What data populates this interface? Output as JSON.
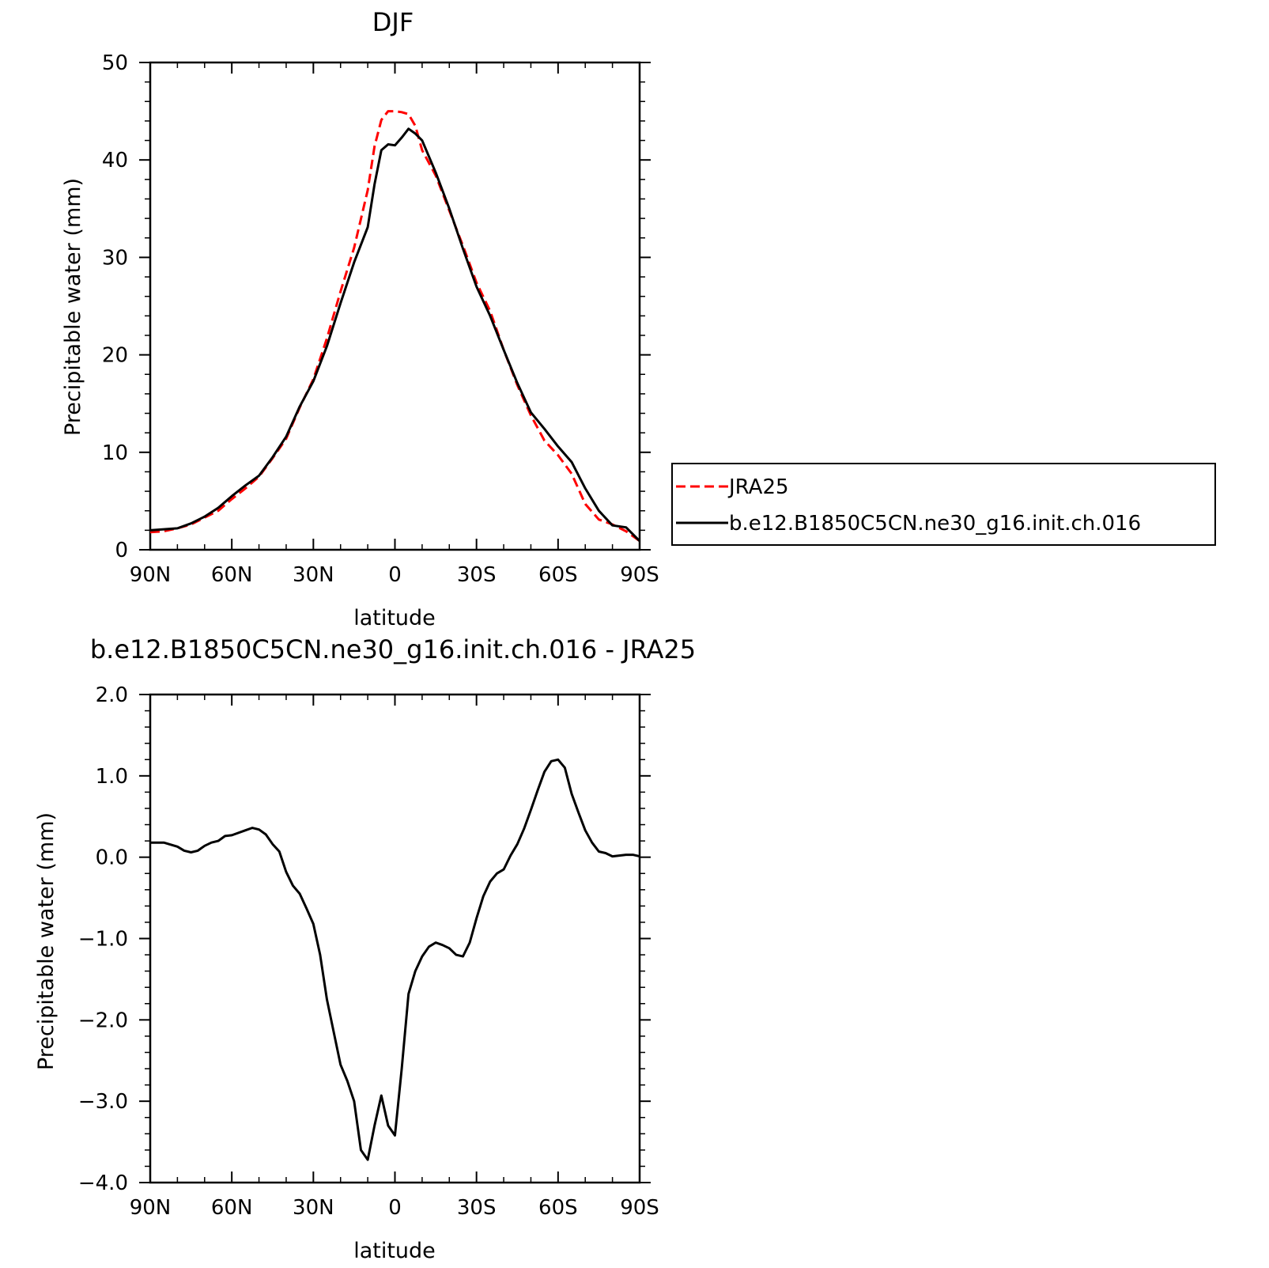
{
  "chart_data": [
    {
      "type": "line",
      "title": "DJF",
      "xlabel": "latitude",
      "ylabel": "Precipitable water (mm)",
      "xlim": [
        90,
        -90
      ],
      "ylim": [
        0,
        50
      ],
      "xticks": [
        90,
        60,
        30,
        0,
        -30,
        -60,
        -90
      ],
      "xtick_labels": [
        "90N",
        "60N",
        "30N",
        "0",
        "30S",
        "60S",
        "90S"
      ],
      "yticks": [
        0,
        10,
        20,
        30,
        40,
        50
      ],
      "ytick_labels": [
        "0",
        "10",
        "20",
        "30",
        "40",
        "50"
      ],
      "legend_position": "right",
      "series": [
        {
          "name": "JRA25",
          "color": "#ff0000",
          "dash": "dashed",
          "x": [
            90,
            85,
            80,
            75,
            70,
            65,
            60,
            55,
            50,
            45,
            40,
            35,
            30,
            25,
            20,
            15,
            10,
            7.5,
            5,
            2.5,
            0,
            -2.5,
            -5,
            -7.5,
            -10,
            -15,
            -20,
            -25,
            -30,
            -35,
            -40,
            -45,
            -50,
            -55,
            -60,
            -65,
            -70,
            -75,
            -80,
            -85,
            -90
          ],
          "values": [
            1.8,
            1.9,
            2.2,
            2.6,
            3.3,
            4.0,
            5.2,
            6.3,
            7.5,
            9.4,
            11.4,
            14.6,
            17.5,
            21.7,
            26.5,
            31.0,
            36.9,
            41.4,
            44.1,
            45.0,
            45.0,
            44.9,
            44.7,
            43.5,
            41.0,
            38.4,
            34.8,
            31.2,
            27.4,
            24.5,
            20.5,
            16.9,
            13.8,
            11.2,
            9.7,
            7.8,
            4.7,
            3.1,
            2.6,
            1.9,
            0.9
          ]
        },
        {
          "name": "b.e12.B1850C5CN.ne30_g16.init.ch.016",
          "color": "#000000",
          "dash": "solid",
          "x": [
            90,
            85,
            80,
            75,
            70,
            65,
            60,
            55,
            50,
            45,
            40,
            35,
            30,
            25,
            20,
            15,
            10,
            7.5,
            5,
            2.5,
            0,
            -2.5,
            -5,
            -7.5,
            -10,
            -15,
            -20,
            -25,
            -30,
            -35,
            -40,
            -45,
            -50,
            -55,
            -60,
            -65,
            -70,
            -75,
            -80,
            -85,
            -90
          ],
          "values": [
            2.0,
            2.1,
            2.2,
            2.7,
            3.4,
            4.3,
            5.5,
            6.6,
            7.6,
            9.5,
            11.6,
            14.7,
            17.3,
            20.9,
            25.3,
            29.5,
            33.1,
            37.5,
            41.0,
            41.6,
            41.5,
            42.3,
            43.2,
            42.7,
            42.0,
            38.7,
            35.0,
            30.9,
            27.0,
            24.0,
            20.5,
            17.1,
            14.1,
            12.4,
            10.6,
            9.0,
            6.3,
            4.0,
            2.5,
            2.3,
            0.9
          ]
        }
      ]
    },
    {
      "type": "line",
      "title": "b.e12.B1850C5CN.ne30_g16.init.ch.016 - JRA25",
      "xlabel": "latitude",
      "ylabel": "Precipitable water (mm)",
      "xlim": [
        90,
        -90
      ],
      "ylim": [
        -4.0,
        2.0
      ],
      "xticks": [
        90,
        60,
        30,
        0,
        -30,
        -60,
        -90
      ],
      "xtick_labels": [
        "90N",
        "60N",
        "30N",
        "0",
        "30S",
        "60S",
        "90S"
      ],
      "yticks": [
        2.0,
        1.0,
        0.0,
        -1.0,
        -2.0,
        -3.0,
        -4.0
      ],
      "ytick_labels": [
        "2.0",
        "1.0",
        "0.0",
        "−1.0",
        "−2.0",
        "−3.0",
        "−4.0"
      ],
      "series": [
        {
          "color": "#000000",
          "dash": "solid",
          "x": [
            90,
            85,
            80,
            77.5,
            75,
            72.5,
            70,
            67.5,
            65,
            62.5,
            60,
            55,
            52.5,
            50,
            47.5,
            45,
            42.5,
            40,
            37.5,
            35,
            32.5,
            30,
            27.5,
            25,
            22.5,
            20,
            17.5,
            15,
            12.5,
            10,
            7.5,
            5,
            2.5,
            0,
            -2.5,
            -5,
            -7.5,
            -10,
            -12.5,
            -15,
            -17.5,
            -20,
            -22.5,
            -25,
            -27.5,
            -30,
            -32.5,
            -35,
            -37.5,
            -40,
            -42.5,
            -45,
            -47.5,
            -50,
            -52.5,
            -55,
            -57.5,
            -60,
            -62.5,
            -65,
            -67.5,
            -70,
            -72.5,
            -75,
            -77.5,
            -80,
            -82.5,
            -85,
            -87.5,
            -90
          ],
          "values": [
            0.18,
            0.18,
            0.13,
            0.08,
            0.06,
            0.08,
            0.14,
            0.18,
            0.2,
            0.26,
            0.27,
            0.33,
            0.36,
            0.34,
            0.28,
            0.16,
            0.07,
            -0.18,
            -0.35,
            -0.45,
            -0.63,
            -0.82,
            -1.2,
            -1.75,
            -2.15,
            -2.55,
            -2.75,
            -3.0,
            -3.6,
            -3.72,
            -3.3,
            -2.93,
            -3.3,
            -3.42,
            -2.6,
            -1.68,
            -1.4,
            -1.22,
            -1.1,
            -1.05,
            -1.08,
            -1.12,
            -1.2,
            -1.22,
            -1.05,
            -0.75,
            -0.48,
            -0.3,
            -0.2,
            -0.15,
            0.02,
            0.16,
            0.35,
            0.58,
            0.82,
            1.05,
            1.18,
            1.2,
            1.1,
            0.78,
            0.55,
            0.33,
            0.18,
            0.07,
            0.05,
            0.01,
            0.02,
            0.03,
            0.03,
            0.01
          ]
        }
      ]
    }
  ]
}
